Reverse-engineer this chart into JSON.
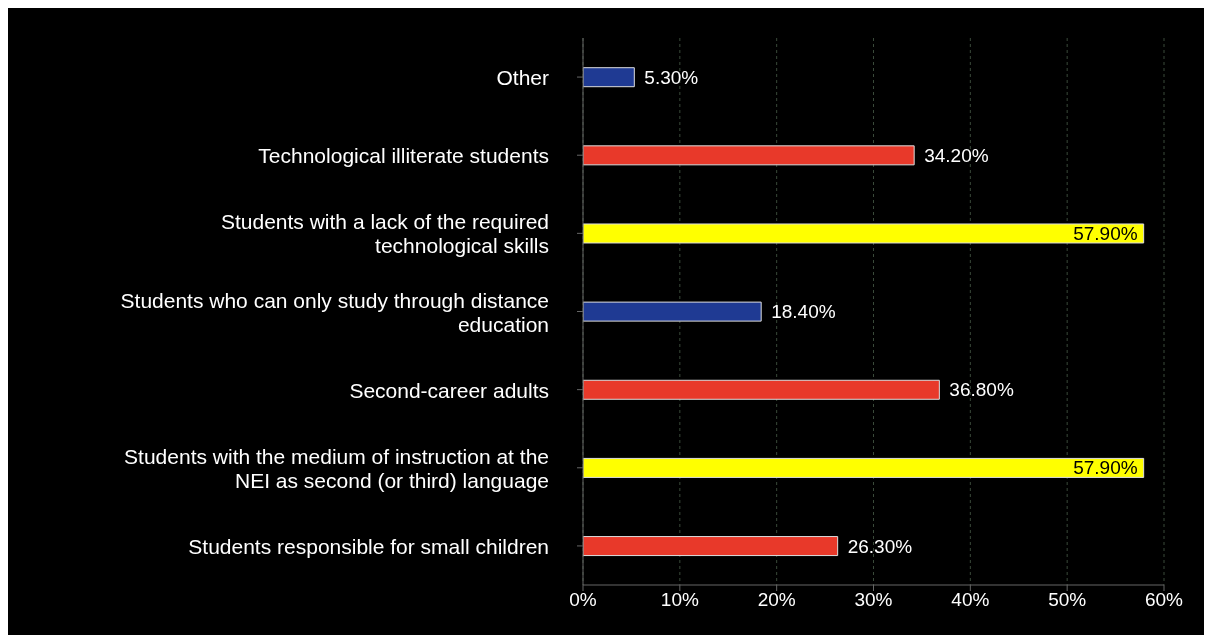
{
  "chart_data": {
    "type": "bar",
    "orientation": "horizontal",
    "categories": [
      "Other",
      "Technological illiterate students",
      "Students with a lack of  the required technological skills",
      "Students who can only study through distance education",
      "Second-career adults",
      "Students with the medium of instruction at the NEI as second (or third) language",
      "Students responsible for small children"
    ],
    "values": [
      5.3,
      34.2,
      57.9,
      18.4,
      36.8,
      57.9,
      26.3
    ],
    "colors": [
      "#1f3a93",
      "#e8392a",
      "#ffff00",
      "#1f3a93",
      "#e8392a",
      "#ffff00",
      "#e8392a"
    ],
    "value_labels": [
      "5.30%",
      "34.20%",
      "57.90%",
      "18.40%",
      "36.80%",
      "57.90%",
      "26.30%"
    ],
    "xlim": [
      0,
      60
    ],
    "xticks": [
      {
        "value": 0,
        "label": "0%"
      },
      {
        "value": 10,
        "label": "10%"
      },
      {
        "value": 20,
        "label": "20%"
      },
      {
        "value": 30,
        "label": "30%"
      },
      {
        "value": 40,
        "label": "40%"
      },
      {
        "value": 50,
        "label": "50%"
      },
      {
        "value": 60,
        "label": "60%"
      }
    ],
    "grid": "x",
    "legend": false
  }
}
